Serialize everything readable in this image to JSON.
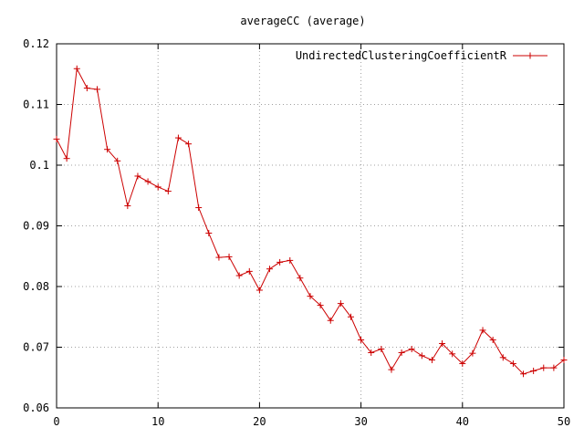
{
  "chart_data": {
    "type": "line",
    "title": "averageCC (average)",
    "xlabel": "",
    "ylabel": "",
    "xlim": [
      0,
      50
    ],
    "ylim": [
      0.06,
      0.12
    ],
    "x_ticks": [
      0,
      10,
      20,
      30,
      40,
      50
    ],
    "x_tick_labels": [
      "0",
      "10",
      "20",
      "30",
      "40",
      "50"
    ],
    "y_ticks": [
      0.06,
      0.07,
      0.08,
      0.09,
      0.1,
      0.11,
      0.12
    ],
    "y_tick_labels": [
      "0.06",
      "0.07",
      "0.08",
      "0.09",
      "0.1",
      "0.11",
      "0.12"
    ],
    "grid": true,
    "legend_position": "top-right",
    "series": [
      {
        "name": "UndirectedClusteringCoefficientR",
        "color": "#cc0000",
        "marker": "plus",
        "x": [
          0,
          1,
          2,
          3,
          4,
          5,
          6,
          7,
          8,
          9,
          10,
          11,
          12,
          13,
          14,
          15,
          16,
          17,
          18,
          19,
          20,
          21,
          22,
          23,
          24,
          25,
          26,
          27,
          28,
          29,
          30,
          31,
          32,
          33,
          34,
          35,
          36,
          37,
          38,
          39,
          40,
          41,
          42,
          43,
          44,
          45,
          46,
          47,
          48,
          49,
          50
        ],
        "values": [
          0.1043,
          0.1011,
          0.1159,
          0.1127,
          0.1125,
          0.1026,
          0.1007,
          0.0933,
          0.0982,
          0.0973,
          0.0964,
          0.0957,
          0.1045,
          0.1035,
          0.093,
          0.0888,
          0.0848,
          0.0849,
          0.0818,
          0.0825,
          0.0794,
          0.0829,
          0.084,
          0.0843,
          0.0814,
          0.0784,
          0.0769,
          0.0744,
          0.0772,
          0.075,
          0.0712,
          0.0691,
          0.0697,
          0.0663,
          0.0691,
          0.0697,
          0.0686,
          0.0679,
          0.0706,
          0.0689,
          0.0673,
          0.069,
          0.0728,
          0.0712,
          0.0683,
          0.0673,
          0.0656,
          0.0661,
          0.0666,
          0.0666,
          0.0679
        ]
      }
    ]
  }
}
